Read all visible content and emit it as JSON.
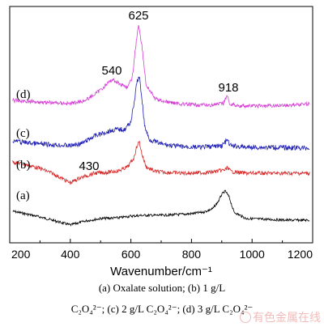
{
  "chart_data": {
    "type": "line",
    "xlabel": "Wavenumber/cm⁻¹",
    "xlim": [
      200,
      1200
    ],
    "x_ticks": [
      200,
      400,
      600,
      800,
      1000,
      1200
    ],
    "x_tick_labels": [
      "200",
      "400",
      "600",
      "800",
      "1000",
      "1200"
    ],
    "ylabel": "",
    "y_ticks_shown": false,
    "grid": false,
    "series": [
      {
        "name": "(a)",
        "color": "#000000",
        "description_points": [
          [
            210,
            261
          ],
          [
            250,
            264
          ],
          [
            300,
            268
          ],
          [
            340,
            272
          ],
          [
            400,
            278
          ],
          [
            450,
            273
          ],
          [
            500,
            270
          ],
          [
            560,
            269
          ],
          [
            600,
            267
          ],
          [
            640,
            266
          ],
          [
            700,
            266
          ],
          [
            760,
            265
          ],
          [
            800,
            264
          ],
          [
            840,
            262
          ],
          [
            870,
            258
          ],
          [
            890,
            248
          ],
          [
            900,
            240
          ],
          [
            912,
            236
          ],
          [
            925,
            244
          ],
          [
            940,
            262
          ],
          [
            980,
            270
          ],
          [
            1050,
            271
          ],
          [
            1120,
            272
          ],
          [
            1190,
            272
          ]
        ]
      },
      {
        "name": "(b)",
        "color": "#d62a2a",
        "description_points": [
          [
            210,
            200
          ],
          [
            260,
            204
          ],
          [
            300,
            208
          ],
          [
            340,
            214
          ],
          [
            380,
            222
          ],
          [
            400,
            226
          ],
          [
            430,
            220
          ],
          [
            480,
            214
          ],
          [
            520,
            213
          ],
          [
            560,
            211
          ],
          [
            590,
            206
          ],
          [
            610,
            195
          ],
          [
            620,
            180
          ],
          [
            628,
            175
          ],
          [
            636,
            190
          ],
          [
            650,
            206
          ],
          [
            680,
            212
          ],
          [
            720,
            213
          ],
          [
            780,
            214
          ],
          [
            860,
            213
          ],
          [
            910,
            210
          ],
          [
            920,
            207
          ],
          [
            930,
            212
          ],
          [
            980,
            214
          ],
          [
            1060,
            214
          ],
          [
            1190,
            214
          ]
        ]
      },
      {
        "name": "(c)",
        "color": "#1e1eb4",
        "description_points": [
          [
            210,
            174
          ],
          [
            250,
            176
          ],
          [
            300,
            178
          ],
          [
            350,
            179
          ],
          [
            400,
            180
          ],
          [
            440,
            177
          ],
          [
            480,
            168
          ],
          [
            520,
            163
          ],
          [
            550,
            160
          ],
          [
            580,
            160
          ],
          [
            600,
            150
          ],
          [
            612,
            125
          ],
          [
            620,
            100
          ],
          [
            628,
            96
          ],
          [
            636,
            120
          ],
          [
            645,
            155
          ],
          [
            660,
            172
          ],
          [
            700,
            178
          ],
          [
            760,
            181
          ],
          [
            830,
            182
          ],
          [
            900,
            180
          ],
          [
            918,
            173
          ],
          [
            928,
            180
          ],
          [
            980,
            182
          ],
          [
            1060,
            182
          ],
          [
            1190,
            183
          ]
        ]
      },
      {
        "name": "(d)",
        "color": "#d63fd6",
        "description_points": [
          [
            210,
            124
          ],
          [
            250,
            125
          ],
          [
            300,
            126
          ],
          [
            350,
            127
          ],
          [
            400,
            128
          ],
          [
            450,
            124
          ],
          [
            490,
            114
          ],
          [
            520,
            104
          ],
          [
            540,
            98
          ],
          [
            560,
            103
          ],
          [
            590,
            108
          ],
          [
            605,
            95
          ],
          [
            615,
            60
          ],
          [
            625,
            30
          ],
          [
            636,
            55
          ],
          [
            650,
            105
          ],
          [
            680,
            122
          ],
          [
            720,
            126
          ],
          [
            780,
            129
          ],
          [
            860,
            130
          ],
          [
            905,
            128
          ],
          [
            912,
            122
          ],
          [
            918,
            118
          ],
          [
            925,
            128
          ],
          [
            960,
            131
          ],
          [
            1040,
            131
          ],
          [
            1120,
            130
          ],
          [
            1190,
            128
          ]
        ]
      }
    ],
    "series_labels": [
      "(a)",
      "(b)",
      "(c)",
      "(d)"
    ],
    "annotations": [
      "625",
      "540",
      "918",
      "430"
    ],
    "caption_line1": "(a) Oxalate solution; (b) 1 g/L",
    "caption_line2": "C₂O₄²⁻; (c) 2 g/L C₂O₄²⁻; (d) 3 g/L C₂O₄²⁻",
    "watermark": "有色金属在线"
  }
}
